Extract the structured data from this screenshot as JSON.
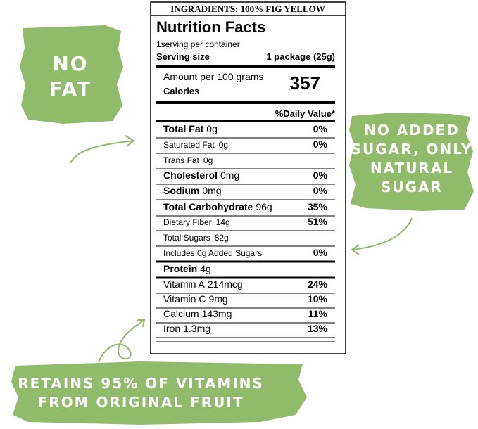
{
  "label": {
    "header": "INGRADIENTS: 100% FIG YELLOW",
    "title": "Nutrition Facts",
    "servings": "1serving per container",
    "serving_size_label": "Serving size",
    "serving_size_value": "1 package (25g)",
    "amount_per": "Amount per 100 grams",
    "calories_label": "Calories",
    "calories_value": "357",
    "daily_value_header": "%Daily Value*",
    "rows": [
      {
        "name": "Total Fat",
        "amount": "0g",
        "dv": "0%"
      },
      {
        "name": "Saturated Fat",
        "amount": "0g",
        "dv": "0%"
      },
      {
        "name": "Trans Fat",
        "amount": "0g"
      },
      {
        "name": "Cholesterol",
        "amount": "0mg",
        "dv": "0%"
      },
      {
        "name": "Sodium",
        "amount": "0mg",
        "dv": "0%"
      },
      {
        "name": "Total Carbohydrate",
        "amount": "96g",
        "dv": "35%"
      },
      {
        "name": "Dietary Fiber",
        "amount": "14g",
        "dv": "51%"
      },
      {
        "name": "Total Sugars",
        "amount": "82g"
      },
      {
        "name": "Includes 0g Added Sugars",
        "dv": "0%"
      },
      {
        "name": "Protein",
        "amount": "4g"
      },
      {
        "name": "Vitamin A",
        "amount": "214mcg",
        "dv": "24%"
      },
      {
        "name": "Vitamin C",
        "amount": "9mg",
        "dv": "10%"
      },
      {
        "name": "Calcium",
        "amount": "143mg",
        "dv": "11%"
      },
      {
        "name": "Iron",
        "amount": "1.3mg",
        "dv": "13%"
      }
    ]
  },
  "callouts": [
    {
      "lines": [
        "NO",
        "FAT"
      ]
    },
    {
      "lines": [
        "NO ADDED",
        "SUGAR, ONLY",
        "NATURAL",
        "SUGAR"
      ]
    },
    {
      "lines": [
        "RETAINS 95% OF  VITAMINS",
        "FROM ORIGINAL FRUIT"
      ]
    }
  ]
}
